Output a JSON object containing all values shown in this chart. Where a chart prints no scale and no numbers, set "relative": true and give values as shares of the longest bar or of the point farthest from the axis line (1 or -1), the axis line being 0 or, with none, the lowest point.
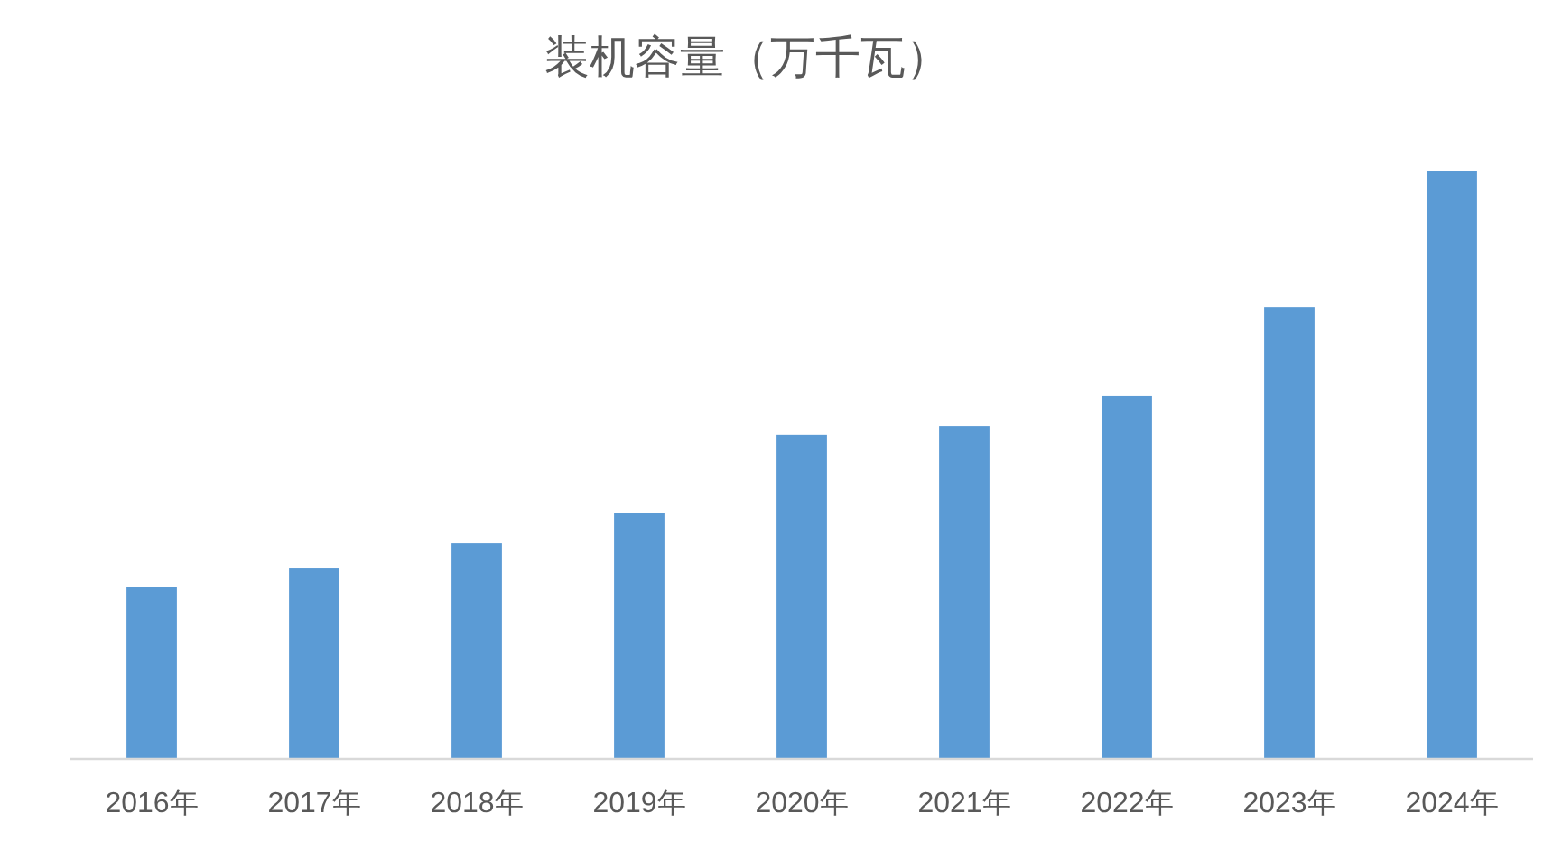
{
  "chart_data": {
    "type": "bar",
    "title": "装机容量（万千瓦）",
    "categories": [
      "2016年",
      "2017年",
      "2018年",
      "2019年",
      "2020年",
      "2021年",
      "2022年",
      "2023年",
      "2024年"
    ],
    "values": [
      0.292,
      0.323,
      0.366,
      0.418,
      0.551,
      0.566,
      0.617,
      0.769,
      1
    ],
    "color": "#5b9bd5",
    "relative": true
  }
}
